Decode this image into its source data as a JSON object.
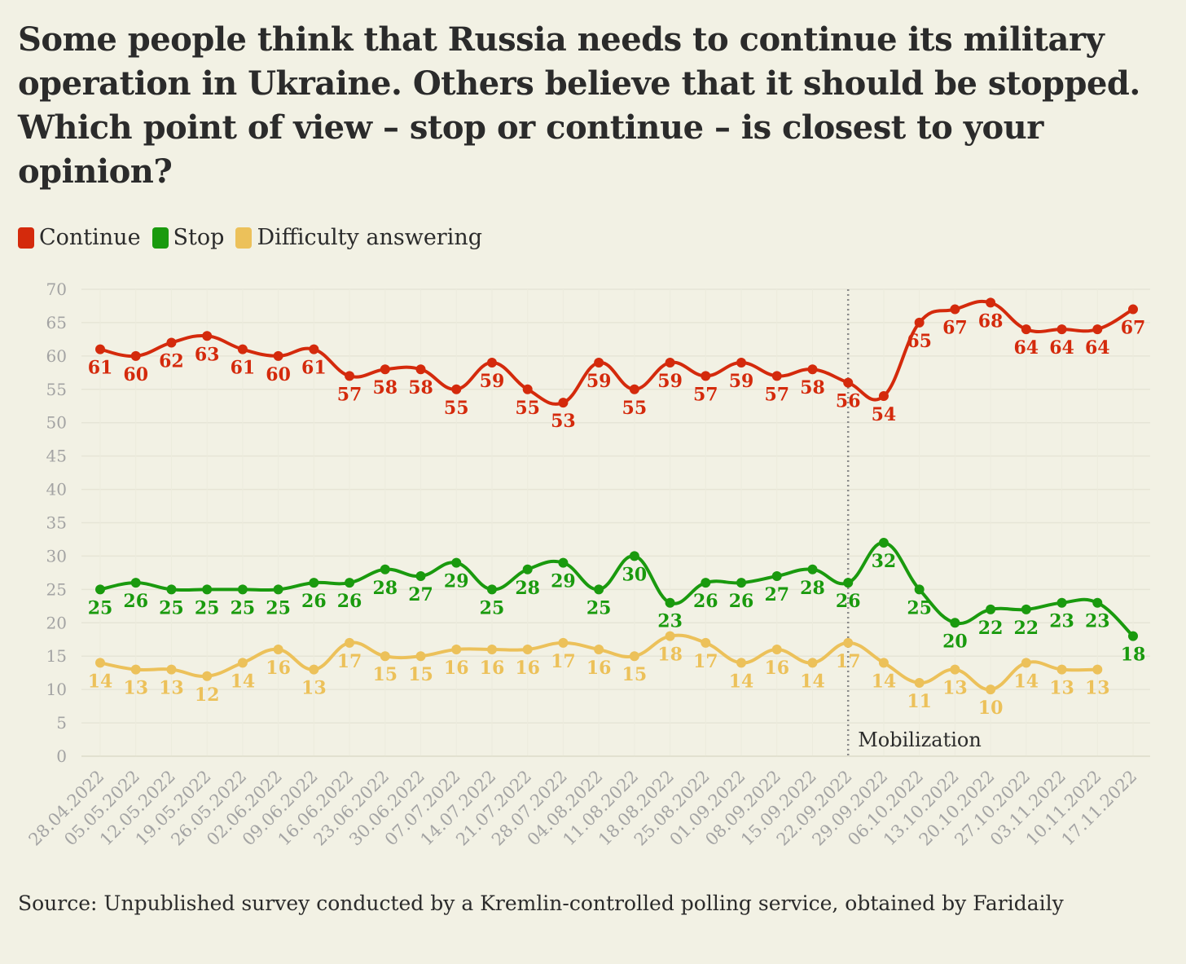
{
  "title": "Some people think that Russia needs to continue its military operation in Ukraine. Others believe that it should be stopped. Which point of view – stop or continue – is closest to your opinion?",
  "source": "Source: Unpublished survey conducted by a Kremlin-controlled polling service, obtained by Faridaily",
  "chart_data": {
    "type": "line",
    "title": "Some people think that Russia needs to continue its military operation in Ukraine. Others believe that it should be stopped. Which point of view – stop or continue – is closest to your opinion?",
    "xlabel": "",
    "ylabel": "",
    "ylim": [
      0,
      70
    ],
    "yticks": [
      0,
      5,
      10,
      15,
      20,
      25,
      30,
      35,
      40,
      45,
      50,
      55,
      60,
      65,
      70
    ],
    "grid": true,
    "legend_position": "top-left",
    "categories": [
      "28.04.2022",
      "05.05.2022",
      "12.05.2022",
      "19.05.2022",
      "26.05.2022",
      "02.06.2022",
      "09.06.2022",
      "16.06.2022",
      "23.06.2022",
      "30.06.2022",
      "07.07.2022",
      "14.07.2022",
      "21.07.2022",
      "28.07.2022",
      "04.08.2022",
      "11.08.2022",
      "18.08.2022",
      "25.08.2022",
      "01.09.2022",
      "08.09.2022",
      "15.09.2022",
      "22.09.2022",
      "29.09.2022",
      "06.10.2022",
      "13.10.2022",
      "20.10.2022",
      "27.10.2022",
      "03.11.2022",
      "10.11.2022",
      "17.11.2022"
    ],
    "series": [
      {
        "name": "Continue",
        "color": "#d42a0c",
        "values": [
          61,
          60,
          62,
          63,
          61,
          60,
          61,
          57,
          58,
          58,
          55,
          59,
          55,
          53,
          59,
          55,
          59,
          57,
          59,
          57,
          58,
          56,
          54,
          65,
          67,
          68,
          64,
          64,
          64,
          67
        ]
      },
      {
        "name": "Stop",
        "color": "#1a9a0e",
        "values": [
          25,
          26,
          25,
          25,
          25,
          25,
          26,
          26,
          28,
          27,
          29,
          25,
          28,
          29,
          25,
          30,
          23,
          26,
          26,
          27,
          28,
          26,
          32,
          25,
          20,
          22,
          22,
          23,
          23,
          18
        ]
      },
      {
        "name": "Difficulty answering",
        "color": "#ecc15a",
        "values": [
          14,
          13,
          13,
          12,
          14,
          16,
          13,
          17,
          15,
          15,
          16,
          16,
          16,
          17,
          16,
          15,
          18,
          17,
          14,
          16,
          14,
          17,
          14,
          11,
          13,
          10,
          14,
          13,
          13,
          null
        ]
      }
    ],
    "annotations": [
      {
        "x": "22.09.2022",
        "text": "Mobilization"
      }
    ]
  }
}
